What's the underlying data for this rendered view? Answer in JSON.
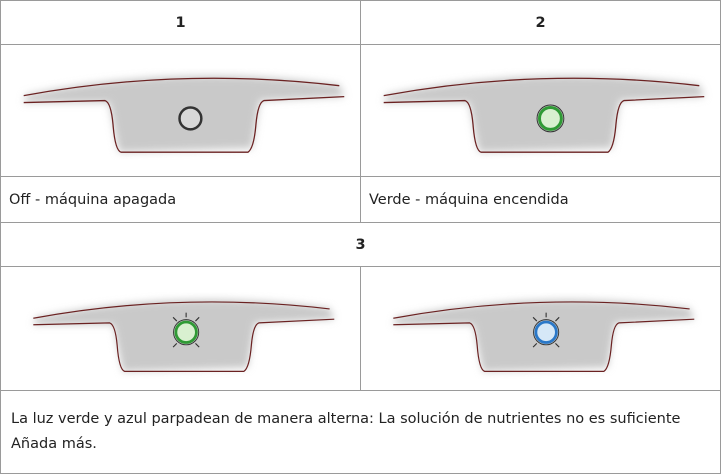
{
  "table": {
    "rows": [
      [
        "1",
        "2"
      ],
      [
        "Off - máquina apagada",
        "Verde - máquina encendida"
      ],
      [
        "3"
      ],
      [
        "La luz verde y azul parpadean de manera alterna: La solución de nutrientes no es suficiente Añada más."
      ]
    ]
  }
}
